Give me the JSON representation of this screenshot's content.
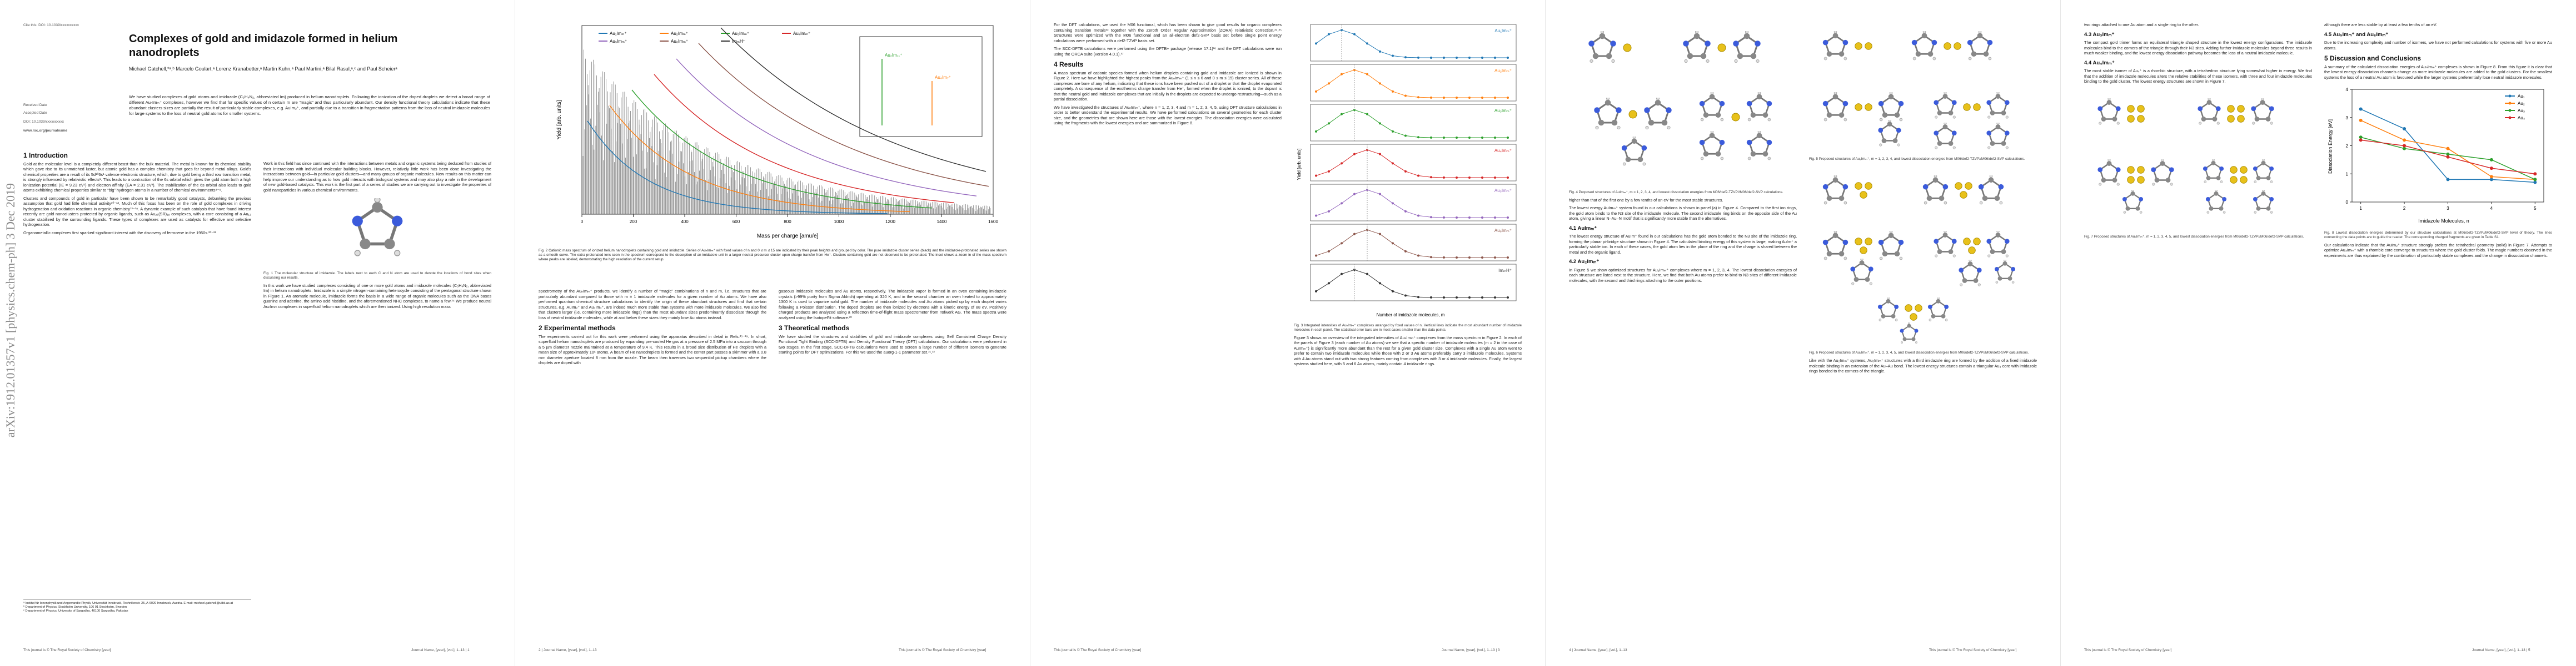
{
  "arxiv_label": "arXiv:1912.01357v1 [physics.chem-ph] 3 Dec 2019",
  "p1": {
    "cite": "Cite this: DOI: 10.1039/xxxxxxxxxx",
    "received": "Received Date",
    "accepted": "Accepted Date",
    "doi": "DOI: 10.1039/xxxxxxxxxx",
    "url": "www.rsc.org/journalname",
    "title": "Complexes of gold and imidazole formed in helium nanodroplets",
    "authors": "Michael Gatchell,*ᵃ,ᵇ Marcelo Goulart,ᵃ Lorenz Kranabetter,ᵃ Martin Kuhn,ᵃ Paul Martini,ᵃ Bilal Rasul,ᵃ,ᶜ and Paul Scheierᵃ",
    "abstract": "We have studied complexes of gold atoms and imidazole (C₃H₄N₂, abbreviated Im) produced in helium nanodroplets. Following the ionization of the doped droplets we detect a broad range of different AuₙImₘ⁺ complexes, however we find that for specific values of n certain m are “magic” and thus particularly abundant. Our density functional theory calculations indicate that these abundant clusters sizes are partially the result of particularly stable complexes, e.g. AuIm₂⁺, and partially due to a transition in fragmentation patterns from the loss of neutral imidazole molecules for large systems to the loss of neutral gold atoms for smaller systems.",
    "intro_heading": "1   Introduction",
    "intro": [
      "Gold at the molecular level is a completely different beast than the bulk material. The metal is known for its chemical stability which gave rise to its unmatched luster, but atomic gold has a complex chemistry that goes far beyond metal alloys. Gold's chemical properties are a result of its 5d¹⁰6s¹ valence electronic structure, which, due to gold being a third row transition metal, is strongly influenced by relativistic effects¹. This leads to a contraction of the 6s orbital which gives the gold atom both a high ionization potential (IE = 9.23 eV²) and electron affinity (EA = 2.31 eV³). The stabilization of the 6s orbital also leads to gold atoms exhibiting chemical properties similar to “big” hydrogen atoms in a number of chemical environments⁴⁻⁹.",
      "Clusters and compounds of gold in particular have been shown to be remarkably good catalysts, debunking the previous assumption that gold had little chemical activity¹⁰⁻¹². Much of this focus has been on the role of gold complexes in driving hydrogenation and oxidation reactions in organic chemistry¹³⁻¹⁹. A dynamic example of such catalysis that have found interest recently are gold nanoclusters protected by organic ligands, such as Au₂₅(SR)₁₈ complexes, with a core consisting of a Au₁₃ cluster stabilized by the surrounding ligands. These types of complexes are used as catalysts for effective and selective hydrogenation.",
      "Organometallic complexes first sparked significant interest with the discovery of ferrocene in the 1950s.²⁰⁻²²"
    ],
    "intro_col2": "Work in this field has since continued with the interactions between metals and organic systems being deduced from studies of their interactions with individual molecular building blocks. However, relatively little work has been done investigating the interactions between gold—in particular gold clusters—and many groups of organic molecules. New results on this matter can help improve our understanding as to how gold interacts with biological systems and may also play a role in the development of new gold-based catalysts. This work is the first part of a series of studies we are carrying out to investigate the properties of gold nanoparticles in various chemical environments.",
    "fig1_caption": "Fig. 1 The molecular structure of imidazole. The labels next to each C and N atom are used to denote the locations of bond sites when discussing our results.",
    "intro_col2b": "In this work we have studied complexes consisting of one or more gold atoms and imidazole molecules (C₃H₄N₂, abbreviated Im) in helium nanodroplets. Imidazole is a simple nitrogen-containing heterocycle consisting of the pentagonal structure shown in Figure 1. An aromatic molecule, imidazole forms the basis in a wide range of organic molecules such as the DNA bases guanine and adenine, the amino acid histidine, and the aforementioned NHC complexes, to name a few.²⁴ We produce neutral AuₙImₘ complexes in superfluid helium nanodroplets which are then ionized. Using high resolution mass",
    "footnotes": [
      "ᵃ Institut für Ionenphysik und Angewandte Physik, Universität Innsbruck, Technikerstr. 25, A-6020 Innsbruck, Austria. E-mail: michael.gatchell@uibk.ac.at",
      "ᵇ Department of Physics, Stockholm University, 106 91 Stockholm, Sweden",
      "ᶜ Department of Physics, University of Sargodha, 40100 Sargodha, Pakistan"
    ],
    "footer_left": "This journal is © The Royal Society of Chemistry [year]",
    "footer_right": "Journal Name, [year], [vol.], 1–13 | 1"
  },
  "p2": {
    "fig2": {
      "legend": [
        "Au₁Imₘ⁺",
        "Au₂Imₘ⁺",
        "Au₃Imₘ⁺",
        "Au₄Imₘ⁺",
        "Au₅Imₘ⁺",
        "Au₆Imₘ⁺",
        "ImₘH⁺"
      ],
      "xlabel": "Mass per charge [amu/e]",
      "ylabel": "Yield [arb. units]",
      "xlim": [
        0,
        1600
      ],
      "xticks": [
        0,
        200,
        400,
        600,
        800,
        1000,
        1200,
        1400,
        1600
      ],
      "inset": [
        "Au₂Im₁₁⁺",
        "Au₄Im₇⁺"
      ]
    },
    "fig2_caption": "Fig. 2 Cationic mass spectrum of ionized helium nanodroplets containing gold and imidazole. Series of AuₙImₘ⁺ with fixed values of n and 0 ≤ m ≤ 15 are indicated by their peak heights and grouped by color. The pure imidazole cluster series (black) and the imidazole-protonated series are shown as a smooth curve. The extra protonated ions seen in the spectrum correspond to the desorption of an imidazole unit in a larger neutral precursor cluster upon charge transfer from He⁺. Clusters containing gold are not observed to be protonated. The inset shows a zoom in of the mass spectrum where peaks are labeled, demonstrating the high resolution of the current setup.",
    "col1": "spectrometry of the AuₙImₘ⁺ products, we identify a number of “magic” combinations of n and m, i.e. structures that are particularly abundant compared to those with m ± 1 imidazole molecules for a given number of Au atoms. We have also performed quantum chemical structure calculations to identify the origin of these abundant structures and find that certain structures, e.g. AuIm₂⁺ and Au₃Im₃⁺, are indeed much more stable than systems with more imidazole molecules. We also find that clusters larger (i.e. containing more imidazole rings) than the most abundant sizes predominantly dissociate through the loss of neutral imidazole molecules, while at and below these sizes they mainly lose Au atoms instead.",
    "exp_heading": "2   Experimental methods",
    "exp": "The experiments carried out for this work were performed using the apparatus described in detail in Refs.²⁵⁻²⁹. In short, superfluid helium nanodroplets are produced by expanding pre-cooled He gas at a pressure of 2.5 MPa into a vacuum through a 5 µm diameter nozzle maintained at a temperature of 9.4 K. This results in a broad size distribution of He droplets with a mean size of approximately 10⁶ atoms. A beam of He nanodroplets is formed and the center part passes a skimmer with a 0.8 mm diameter aperture located 8 mm from the nozzle. The beam then traverses two sequential pickup chambers where the droplets are doped with",
    "col2": "gaseous imidazole molecules and Au atoms, respectively. The imidazole vapor is formed in an oven containing imidazole crystals (>99% purity from Sigma Aldrich) operating at 320 K, and in the second chamber an oven heated to approximately 1300 K is used to vaporize solid gold. The number of imidazole molecules and Au atoms picked up by each droplet varies following a Poisson distribution. The doped droplets are then ionized by electrons with a kinetic energy of 88 eV. Positively charged products are analyzed using a reflectron time-of-flight mass spectrometer from Tofwerk AG. The mass spectra were analyzed using the IsotopeFit software.³⁰",
    "theo_heading": "3   Theoretical methods",
    "theo": "We have studied the structures and stabilities of gold and imidazole complexes using Self Consistent Charge Density Functional Tight Binding (SCC-DFTB) and Density Functional Theory (DFT) calculations. Our calculations were performed in two stages. In the first stage, SCC-DFTB calculations were used to screen a large number of different isomers to generate starting points for DFT optimizations. For this we used the auorg-1-1 parameter set.³¹,³²",
    "footer_left": "2 | Journal Name, [year], [vol.], 1–13",
    "footer_right": "This journal is © The Royal Society of Chemistry [year]"
  },
  "p3": {
    "col1a": "For the DFT calculations, we used the M06 functional, which has been shown to give good results for organic complexes containing transition metals³³ together with the Zeroth Order Regular Approximation (ZORA) relativistic correction.³⁴,³⁵ Structures were optimized with the M06 functional and an all-electron def2-SVP basis set before single point energy calculations were performed with a def2-TZVP basis set.",
    "col1b": "The SCC-DFTB calculations were performed using the DFTB+ package (release 17.1)³⁶ and the DFT calculations were run using the ORCA suite (version 4.0.1).³⁷",
    "results_heading": "4   Results",
    "results1": "A mass spectrum of cationic species formed when helium droplets containing gold and imidazole are ionized is shown in Figure 2. Here we have highlighted the highest peaks from the AuₙImₘ⁺ (1 ≤ n ≤ 6 and 0 ≤ m ≤ 15) cluster series. All of these complexes are bare of any helium, indicating that these ions have been pushed out of a droplet or that the droplet evaporated completely. A consequence of the exothermic charge transfer from He⁺, formed when the droplet is ionized, to the dopant is that the neutral gold and imidazole complexes that are initially in the droplets are expected to undergo restructuring—such as a partial dissociation.",
    "results2": "We have investigated the structures of AuₙImₘ⁺, where n = 1, 2, 3, 4 and m = 1, 2, 3, 4, 5, using DFT structure calculations in order to better understand the experimental results. We have performed calculations on several geometries for each cluster size, and the geometries that are shown here are those with the lowest energies. The dissociation energies were calculated using the fragments with the lowest energies and are summarized in Figure 8.",
    "fig3": {
      "legend": [
        "Au₁Imₘ⁺",
        "Au₂Imₘ⁺",
        "Au₃Imₘ⁺",
        "Au₄Imₘ⁺",
        "Au₅Imₘ⁺",
        "Au₆Imₘ⁺",
        "ImₘH⁺"
      ],
      "xlabel": "Number of imidazole molecules, m",
      "ylabel": "Yield [arb. units]"
    },
    "fig3_caption": "Fig. 3 Integrated intensities of AuₙImₘ⁺ complexes arranged by fixed values of n. Vertical lines indicate the most abundant number of imidazole molecules in each panel. The statistical error bars are in most cases smaller than the data points.",
    "col2": "Figure 3 shows an overview of the integrated intensities of AuₙImₘ⁺ complexes from the mass spectrum in Figure 2. In each of the panels of Figure 3 (each number of Au atoms) we see that a specific number of imidazole molecules (m = 2 in the case of AuImₘ⁺) is significantly more abundant than the rest for a given gold cluster size. Complexes with a single Au atom went to prefer to contain two imidazole molecules while those with 2 or 3 Au atoms preferably carry 3 imidazole molecules. Systems with 4 Au atoms stand out with two strong features coming from complexes with 3 or 4 imidazole molecules. Finally, the largest systems studied here, with 5 and 6 Au atoms, mainly contain 4 imidazole rings.",
    "footer_left": "This journal is © The Royal Society of Chemistry [year]",
    "footer_right": "Journal Name, [year], [vol.], 1–13 | 3"
  },
  "p4": {
    "fig4_caption": "Fig. 4 Proposed structures of AuImₘ⁺, m = 1, 2, 3, 4, and lowest dissociation energies from M06/def2-TZVP//M06/def2-SVP calculations.",
    "col1a": "higher than that of the first one by a few tenths of an eV for the most stable structures.",
    "col1b": "The lowest energy AuImₘ⁺ system found in our calculations is shown in panel (a) in Figure 4. Compared to the first ion rings, the gold atom binds to the N3 site of the imidazole molecule. The second imidazole ring binds on the opposite side of the Au atom, giving a linear N–Au–N motif that is significantly more stable than the alternatives.",
    "h41": "4.1   AuImₘ⁺",
    "s41": "The lowest energy structure of AuIm⁺ found in our calculations has the gold atom bonded to the N3 site of the imidazole ring, forming the planar pi-bridge structure shown in Figure 4. The calculated binding energy of this system is large, making AuIm⁺ a particularly stable ion. In each of these cases, the gold atom lies in the plane of the ring and the charge is shared between the metal and the organic ligand.",
    "h42": "4.2   Au₂Imₘ⁺",
    "s42": "In Figure 5 we show optimized structures for Au₂Imₘ⁺ complexes where m = 1, 2, 3, 4. The lowest dissociation energies of each structure are listed next to the structure. Here, we find that both Au atoms prefer to bind to N3 sites of different imidazole molecules, with the second and third rings attaching to the outer positions.",
    "fig5_caption": "Fig. 5 Proposed structures of Au₂Imₘ⁺, m = 1, 2, 3, 4, and lowest dissociation energies from M06/def2-TZVP//M06/def2-SVP calculations.",
    "fig6_caption": "Fig. 6 Proposed structures of Au₃Imₘ⁺, m = 1, 2, 3, 4, 5, and lowest dissociation energies from M06/def2-TZVP//M06/def2-SVP calculations.",
    "col2": "Like with the Au₂Imₘ⁺ systems, Au₃Imₘ⁺ structures with a third imidazole ring are formed by the addition of a fixed imidazole molecule binding in an extension of the Au–Au bond. The lowest energy structures contain a triangular Au₃ core with imidazole rings bonded to the corners of the triangle.",
    "footer_left": "4 | Journal Name, [year], [vol.], 1–13",
    "footer_right": "This journal is © The Royal Society of Chemistry [year]"
  },
  "p5": {
    "col1a": "two rings attached to one Au atom and a single ring to the other.",
    "h43": "4.3   Au₃Imₘ⁺",
    "s43": "The compact gold trimer forms an equilateral triangle shaped structure in the lowest energy configurations. The imidazole molecules bind to the corners of the triangle through their N3 sites. Adding further imidazole molecules beyond three results in much weaker binding, and the lowest energy dissociation pathway becomes the loss of a neutral imidazole molecule.",
    "h44": "4.4   Au₄Imₘ⁺",
    "s44": "The most stable isomer of Au₄⁺ is a rhombic structure, with a tetrahedron structure lying somewhat higher in energy. We find that the addition of imidazole molecules alters the relative stabilities of these isomers, with three and four imidazole molecules binding to the gold cluster. The lowest energy structures are shown in Figure 7.",
    "fig7_caption": "Fig. 7 Proposed structures of Au₄Imₘ⁺, m = 1, 2, 3, 4, 5, and lowest dissociation energies from M06/def2-TZVP//M06/def2-SVP calculations.",
    "col2a": "although there are less stable by at least a few tenths of an eV.",
    "h45": "4.5   Au₅Imₘ⁺ and Au₆Imₘ⁺",
    "s45": "Due to the increasing complexity and number of isomers, we have not performed calculations for systems with five or more Au atoms.",
    "h5": "5   Discussion and Conclusions",
    "s5": "A summary of the calculated dissociation energies of AuₙImₘ⁺ complexes is shown in Figure 8. From this figure it is clear that the lowest energy dissociation channels change as more imidazole molecules are added to the gold clusters. For the smallest systems the loss of a neutral Au atom is favoured while the larger systems preferentially lose neutral imidazole molecules.",
    "fig8": {
      "type": "line",
      "xlabel": "Imidazole Molecules, n",
      "ylabel": "Dissociation Energy [eV]",
      "x": [
        1,
        2,
        3,
        4,
        5
      ],
      "xlim": [
        0.8,
        5.2
      ],
      "ylim": [
        0,
        4
      ],
      "xticks": [
        1,
        2,
        3,
        4,
        5
      ],
      "yticks": [
        0,
        1,
        2,
        3,
        4
      ],
      "series": [
        {
          "name": "Au₁",
          "color": "#1f77b4",
          "values": [
            3.3,
            2.6,
            0.8,
            0.8,
            0.7
          ]
        },
        {
          "name": "Au₂",
          "color": "#ff7f0e",
          "values": [
            2.9,
            2.2,
            1.9,
            0.9,
            0.8
          ]
        },
        {
          "name": "Au₃",
          "color": "#2ca02c",
          "values": [
            2.3,
            1.9,
            1.7,
            1.5,
            0.8
          ]
        },
        {
          "name": "Au₄",
          "color": "#d62728",
          "values": [
            2.2,
            2.0,
            1.6,
            1.2,
            1.0
          ]
        }
      ]
    },
    "fig8_caption": "Fig. 8 Lowest dissociation energies determined by our structure calculations at M06/def2-TZVP//M06/def2-SVP level of theory. The lines connecting the data points are to guide the reader. The corresponding charged fragments are given in Table S1.",
    "col2b": "Our calculations indicate that the AuIm₂⁺ structure strongly prefers the tetrahedral geometry (solid) in Figure 7. Attempts to optimize Au₄Imₘ⁺ with a rhombic core converge to structures where the gold cluster folds. The magic numbers observed in the experiments are thus explained by the combination of particularly stable complexes and the change in dissociation channels.",
    "footer_left": "This journal is © The Royal Society of Chemistry [year]",
    "footer_right": "Journal Name, [year], [vol.], 1–13 | 5"
  }
}
